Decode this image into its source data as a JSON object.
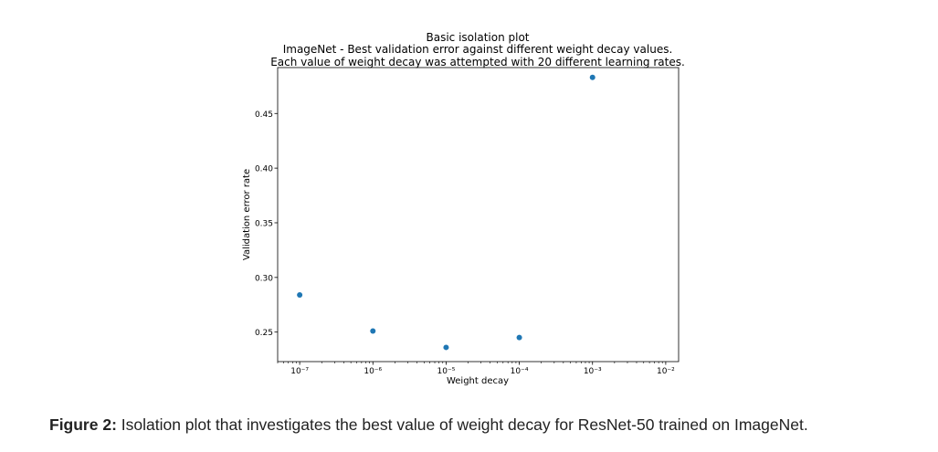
{
  "chart_data": {
    "type": "scatter",
    "title": "Basic isolation plot",
    "subtitle_lines": [
      "ImageNet - Best validation error against different weight decay values.",
      "Each value of weight decay was attempted with 20 different learning rates."
    ],
    "xlabel": "Weight decay",
    "ylabel": "Validation error rate",
    "x_scale": "log",
    "xlim": [
      5e-08,
      0.015
    ],
    "ylim": [
      0.223,
      0.492
    ],
    "x_ticks": [
      {
        "value": 1e-07,
        "label": "10⁻⁷"
      },
      {
        "value": 1e-06,
        "label": "10⁻⁶"
      },
      {
        "value": 1e-05,
        "label": "10⁻⁵"
      },
      {
        "value": 0.0001,
        "label": "10⁻⁴"
      },
      {
        "value": 0.001,
        "label": "10⁻³"
      },
      {
        "value": 0.01,
        "label": "10⁻²"
      }
    ],
    "y_ticks": [
      {
        "value": 0.25,
        "label": "0.25"
      },
      {
        "value": 0.3,
        "label": "0.30"
      },
      {
        "value": 0.35,
        "label": "0.35"
      },
      {
        "value": 0.4,
        "label": "0.40"
      },
      {
        "value": 0.45,
        "label": "0.45"
      }
    ],
    "points": [
      {
        "x": 1e-07,
        "y": 0.284
      },
      {
        "x": 1e-06,
        "y": 0.251
      },
      {
        "x": 1e-05,
        "y": 0.236
      },
      {
        "x": 0.0001,
        "y": 0.245
      },
      {
        "x": 0.001,
        "y": 0.483
      }
    ],
    "marker_color": "#1f77b4",
    "grid": false,
    "legend": "none"
  },
  "caption": {
    "label": "Figure 2:",
    "text": " Isolation plot that investigates the best value of weight decay for ResNet-50 trained on ImageNet."
  }
}
